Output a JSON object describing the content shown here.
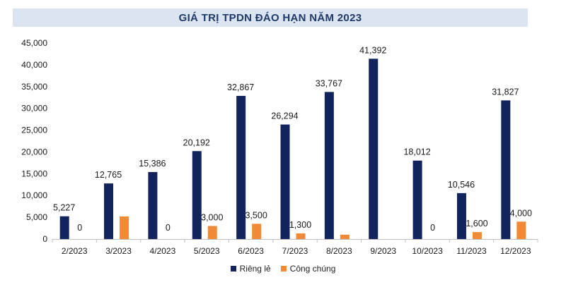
{
  "chart_data": {
    "type": "bar",
    "title": "GIÁ TRỊ TPDN ĐÁO HẠN NĂM 2023",
    "categories": [
      "2/2023",
      "3/2023",
      "4/2023",
      "5/2023",
      "6/2023",
      "7/2023",
      "8/2023",
      "9/2023",
      "10/2023",
      "11/2023",
      "12/2023"
    ],
    "series": [
      {
        "name": "Riêng lẻ",
        "color": "#12245e",
        "values": [
          5227,
          12765,
          15386,
          20192,
          32867,
          26294,
          33767,
          41392,
          18012,
          10546,
          31827
        ],
        "labels": [
          "5,227",
          "12,765",
          "15,386",
          "20,192",
          "32,867",
          "26,294",
          "33,767",
          "41,392",
          "18,012",
          "10,546",
          "31,827"
        ]
      },
      {
        "name": "Công chúng",
        "color": "#f08a36",
        "values": [
          0,
          5200,
          0,
          3000,
          3500,
          1300,
          1000,
          0,
          0,
          1600,
          4000
        ],
        "labels": [
          "0",
          "",
          "0",
          "3,000",
          "3,500",
          "1,300",
          "",
          "",
          "0",
          "1,600",
          "4,000"
        ]
      }
    ],
    "ylim": [
      0,
      45000
    ],
    "yticks": [
      "0",
      "5,000",
      "10,000",
      "15,000",
      "20,000",
      "25,000",
      "30,000",
      "35,000",
      "40,000",
      "45,000"
    ],
    "xlabel": "",
    "ylabel": "",
    "grid": false,
    "legend": "bottom"
  }
}
